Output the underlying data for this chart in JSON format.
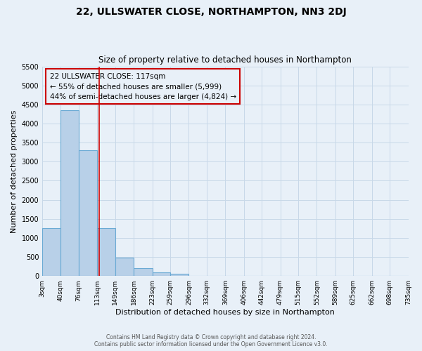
{
  "title": "22, ULLSWATER CLOSE, NORTHAMPTON, NN3 2DJ",
  "subtitle": "Size of property relative to detached houses in Northampton",
  "xlabel": "Distribution of detached houses by size in Northampton",
  "ylabel": "Number of detached properties",
  "footer_line1": "Contains HM Land Registry data © Crown copyright and database right 2024.",
  "footer_line2": "Contains public sector information licensed under the Open Government Licence v3.0.",
  "bin_edges": [
    3,
    40,
    76,
    113,
    149,
    186,
    223,
    259,
    296,
    332,
    369,
    406,
    442,
    479,
    515,
    552,
    589,
    625,
    662,
    698,
    735
  ],
  "bar_heights": [
    1250,
    4350,
    3300,
    1250,
    480,
    200,
    90,
    50,
    0,
    0,
    0,
    0,
    0,
    0,
    0,
    0,
    0,
    0,
    0,
    0
  ],
  "bar_color": "#b8d0e8",
  "bar_edge_color": "#6aaad4",
  "property_size": 117,
  "property_line_color": "#cc0000",
  "annotation_title": "22 ULLSWATER CLOSE: 117sqm",
  "annotation_line1": "← 55% of detached houses are smaller (5,999)",
  "annotation_line2": "44% of semi-detached houses are larger (4,824) →",
  "annotation_box_color": "#cc0000",
  "ylim": [
    0,
    5500
  ],
  "yticks": [
    0,
    500,
    1000,
    1500,
    2000,
    2500,
    3000,
    3500,
    4000,
    4500,
    5000,
    5500
  ],
  "grid_color": "#c8d8e8",
  "background_color": "#e8f0f8"
}
